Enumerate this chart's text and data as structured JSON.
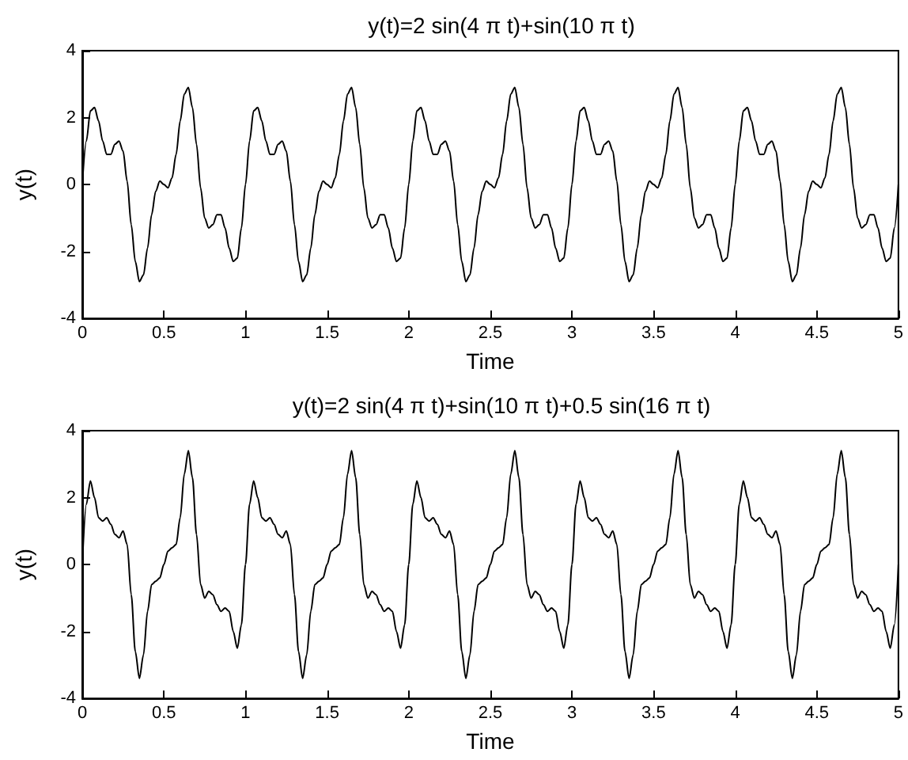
{
  "chart_data": [
    {
      "type": "line",
      "title": "y(t)=2 sin(4 π t)+sin(10 π t)",
      "xlabel": "Time",
      "ylabel": "y(t)",
      "xlim": [
        0,
        5
      ],
      "ylim": [
        -4,
        4
      ],
      "xticks": [
        0,
        0.5,
        1,
        1.5,
        2,
        2.5,
        3,
        3.5,
        4,
        4.5,
        5
      ],
      "yticks": [
        -4,
        -2,
        0,
        2,
        4
      ],
      "marker": "none",
      "line_style": "solid",
      "x": [
        0,
        0.025,
        0.05,
        0.075,
        0.1,
        0.125,
        0.15,
        0.175,
        0.2,
        0.225,
        0.25,
        0.275,
        0.3,
        0.325,
        0.35,
        0.375,
        0.4,
        0.425,
        0.45,
        0.475,
        0.5,
        0.525,
        0.55,
        0.575,
        0.6,
        0.625,
        0.65,
        0.675,
        0.7,
        0.725,
        0.75,
        0.775,
        0.8,
        0.825,
        0.85,
        0.875,
        0.9,
        0.925,
        0.95,
        0.975,
        1,
        1.025,
        1.05,
        1.075,
        1.1,
        1.125,
        1.15,
        1.175,
        1.2,
        1.225,
        1.25,
        1.275,
        1.3,
        1.325,
        1.35,
        1.375,
        1.4,
        1.425,
        1.45,
        1.475,
        1.5,
        1.525,
        1.55,
        1.575,
        1.6,
        1.625,
        1.65,
        1.675,
        1.7,
        1.725,
        1.75,
        1.775,
        1.8,
        1.825,
        1.85,
        1.875,
        1.9,
        1.925,
        1.95,
        1.975,
        2,
        2.025,
        2.05,
        2.075,
        2.1,
        2.125,
        2.15,
        2.175,
        2.2,
        2.225,
        2.25,
        2.275,
        2.3,
        2.325,
        2.35,
        2.375,
        2.4,
        2.425,
        2.45,
        2.475,
        2.5,
        2.525,
        2.55,
        2.575,
        2.6,
        2.625,
        2.65,
        2.675,
        2.7,
        2.725,
        2.75,
        2.775,
        2.8,
        2.825,
        2.85,
        2.875,
        2.9,
        2.925,
        2.95,
        2.975,
        3,
        3.025,
        3.05,
        3.075,
        3.1,
        3.125,
        3.15,
        3.175,
        3.2,
        3.225,
        3.25,
        3.275,
        3.3,
        3.325,
        3.35,
        3.375,
        3.4,
        3.425,
        3.45,
        3.475,
        3.5,
        3.525,
        3.55,
        3.575,
        3.6,
        3.625,
        3.65,
        3.675,
        3.7,
        3.725,
        3.75,
        3.775,
        3.8,
        3.825,
        3.85,
        3.875,
        3.9,
        3.925,
        3.95,
        3.975,
        4,
        4.025,
        4.05,
        4.075,
        4.1,
        4.125,
        4.15,
        4.175,
        4.2,
        4.225,
        4.25,
        4.275,
        4.3,
        4.325,
        4.35,
        4.375,
        4.4,
        4.425,
        4.45,
        4.475,
        4.5,
        4.525,
        4.55,
        4.575,
        4.6,
        4.625,
        4.65,
        4.675,
        4.7,
        4.725,
        4.75,
        4.775,
        4.8,
        4.825,
        4.85,
        4.875,
        4.9,
        4.925,
        4.95,
        4.975,
        5
      ],
      "series": [
        {
          "color": "#000000",
          "values": [
            0,
            1.3,
            2.2,
            2.3,
            1.9,
            1.3,
            0.9,
            0.9,
            1.2,
            1.3,
            1.0,
            0.1,
            -1.2,
            -2.3,
            -2.9,
            -2.7,
            -1.9,
            -0.9,
            -0.2,
            0.1,
            0,
            -0.1,
            0.2,
            0.9,
            1.9,
            2.7,
            2.9,
            2.3,
            1.2,
            -0.1,
            -1.0,
            -1.3,
            -1.2,
            -0.9,
            -0.9,
            -1.3,
            -1.9,
            -2.3,
            -2.2,
            -1.3,
            0,
            1.3,
            2.2,
            2.3,
            1.9,
            1.3,
            0.9,
            0.9,
            1.2,
            1.3,
            1.0,
            0.1,
            -1.2,
            -2.3,
            -2.9,
            -2.7,
            -1.9,
            -0.9,
            -0.2,
            0.1,
            0,
            -0.1,
            0.2,
            0.9,
            1.9,
            2.7,
            2.9,
            2.3,
            1.2,
            -0.1,
            -1.0,
            -1.3,
            -1.2,
            -0.9,
            -0.9,
            -1.3,
            -1.9,
            -2.3,
            -2.2,
            -1.3,
            0,
            1.3,
            2.2,
            2.3,
            1.9,
            1.3,
            0.9,
            0.9,
            1.2,
            1.3,
            1.0,
            0.1,
            -1.2,
            -2.3,
            -2.9,
            -2.7,
            -1.9,
            -0.9,
            -0.2,
            0.1,
            0,
            -0.1,
            0.2,
            0.9,
            1.9,
            2.7,
            2.9,
            2.3,
            1.2,
            -0.1,
            -1.0,
            -1.3,
            -1.2,
            -0.9,
            -0.9,
            -1.3,
            -1.9,
            -2.3,
            -2.2,
            -1.3,
            0,
            1.3,
            2.2,
            2.3,
            1.9,
            1.3,
            0.9,
            0.9,
            1.2,
            1.3,
            1.0,
            0.1,
            -1.2,
            -2.3,
            -2.9,
            -2.7,
            -1.9,
            -0.9,
            -0.2,
            0.1,
            0,
            -0.1,
            0.2,
            0.9,
            1.9,
            2.7,
            2.9,
            2.3,
            1.2,
            -0.1,
            -1.0,
            -1.3,
            -1.2,
            -0.9,
            -0.9,
            -1.3,
            -1.9,
            -2.3,
            -2.2,
            -1.3,
            0,
            1.3,
            2.2,
            2.3,
            1.9,
            1.3,
            0.9,
            0.9,
            1.2,
            1.3,
            1.0,
            0.1,
            -1.2,
            -2.3,
            -2.9,
            -2.7,
            -1.9,
            -0.9,
            -0.2,
            0.1,
            0,
            -0.1,
            0.2,
            0.9,
            1.9,
            2.7,
            2.9,
            2.3,
            1.2,
            -0.1,
            -1.0,
            -1.3,
            -1.2,
            -0.9,
            -0.9,
            -1.3,
            -1.9,
            -2.3,
            -2.2,
            -1.3,
            0
          ]
        }
      ]
    },
    {
      "type": "line",
      "title": "y(t)=2 sin(4 π t)+sin(10 π t)+0.5 sin(16 π t)",
      "xlabel": "Time",
      "ylabel": "y(t)",
      "xlim": [
        0,
        5
      ],
      "ylim": [
        -4,
        4
      ],
      "xticks": [
        0,
        0.5,
        1,
        1.5,
        2,
        2.5,
        3,
        3.5,
        4,
        4.5,
        5
      ],
      "yticks": [
        -4,
        -2,
        0,
        2,
        4
      ],
      "marker": "none",
      "line_style": "solid",
      "x": [
        0,
        0.025,
        0.05,
        0.075,
        0.1,
        0.125,
        0.15,
        0.175,
        0.2,
        0.225,
        0.25,
        0.275,
        0.3,
        0.325,
        0.35,
        0.375,
        0.4,
        0.425,
        0.45,
        0.475,
        0.5,
        0.525,
        0.55,
        0.575,
        0.6,
        0.625,
        0.65,
        0.675,
        0.7,
        0.725,
        0.75,
        0.775,
        0.8,
        0.825,
        0.85,
        0.875,
        0.9,
        0.925,
        0.95,
        0.975,
        1,
        1.025,
        1.05,
        1.075,
        1.1,
        1.125,
        1.15,
        1.175,
        1.2,
        1.225,
        1.25,
        1.275,
        1.3,
        1.325,
        1.35,
        1.375,
        1.4,
        1.425,
        1.45,
        1.475,
        1.5,
        1.525,
        1.55,
        1.575,
        1.6,
        1.625,
        1.65,
        1.675,
        1.7,
        1.725,
        1.75,
        1.775,
        1.8,
        1.825,
        1.85,
        1.875,
        1.9,
        1.925,
        1.95,
        1.975,
        2,
        2.025,
        2.05,
        2.075,
        2.1,
        2.125,
        2.15,
        2.175,
        2.2,
        2.225,
        2.25,
        2.275,
        2.3,
        2.325,
        2.35,
        2.375,
        2.4,
        2.425,
        2.45,
        2.475,
        2.5,
        2.525,
        2.55,
        2.575,
        2.6,
        2.625,
        2.65,
        2.675,
        2.7,
        2.725,
        2.75,
        2.775,
        2.8,
        2.825,
        2.85,
        2.875,
        2.9,
        2.925,
        2.95,
        2.975,
        3,
        3.025,
        3.05,
        3.075,
        3.1,
        3.125,
        3.15,
        3.175,
        3.2,
        3.225,
        3.25,
        3.275,
        3.3,
        3.325,
        3.35,
        3.375,
        3.4,
        3.425,
        3.45,
        3.475,
        3.5,
        3.525,
        3.55,
        3.575,
        3.6,
        3.625,
        3.65,
        3.675,
        3.7,
        3.725,
        3.75,
        3.775,
        3.8,
        3.825,
        3.85,
        3.875,
        3.9,
        3.925,
        3.95,
        3.975,
        4,
        4.025,
        4.05,
        4.075,
        4.1,
        4.125,
        4.15,
        4.175,
        4.2,
        4.225,
        4.25,
        4.275,
        4.3,
        4.325,
        4.35,
        4.375,
        4.4,
        4.425,
        4.45,
        4.475,
        4.5,
        4.525,
        4.55,
        4.575,
        4.6,
        4.625,
        4.65,
        4.675,
        4.7,
        4.725,
        4.75,
        4.775,
        4.8,
        4.825,
        4.85,
        4.875,
        4.9,
        4.925,
        4.95,
        4.975,
        5
      ],
      "series": [
        {
          "color": "#000000",
          "values": [
            0,
            1.8,
            2.5,
            2.0,
            1.4,
            1.3,
            1.4,
            1.2,
            0.9,
            0.8,
            1.0,
            0.6,
            -0.9,
            -2.6,
            -3.4,
            -2.7,
            -1.4,
            -0.6,
            -0.5,
            -0.4,
            0,
            0.4,
            0.5,
            0.6,
            1.4,
            2.7,
            3.4,
            2.6,
            0.9,
            -0.6,
            -1.0,
            -0.8,
            -0.9,
            -1.2,
            -1.4,
            -1.3,
            -1.4,
            -2.0,
            -2.5,
            -1.8,
            0,
            1.8,
            2.5,
            2.0,
            1.4,
            1.3,
            1.4,
            1.2,
            0.9,
            0.8,
            1.0,
            0.6,
            -0.9,
            -2.6,
            -3.4,
            -2.7,
            -1.4,
            -0.6,
            -0.5,
            -0.4,
            0,
            0.4,
            0.5,
            0.6,
            1.4,
            2.7,
            3.4,
            2.6,
            0.9,
            -0.6,
            -1.0,
            -0.8,
            -0.9,
            -1.2,
            -1.4,
            -1.3,
            -1.4,
            -2.0,
            -2.5,
            -1.8,
            0,
            1.8,
            2.5,
            2.0,
            1.4,
            1.3,
            1.4,
            1.2,
            0.9,
            0.8,
            1.0,
            0.6,
            -0.9,
            -2.6,
            -3.4,
            -2.7,
            -1.4,
            -0.6,
            -0.5,
            -0.4,
            0,
            0.4,
            0.5,
            0.6,
            1.4,
            2.7,
            3.4,
            2.6,
            0.9,
            -0.6,
            -1.0,
            -0.8,
            -0.9,
            -1.2,
            -1.4,
            -1.3,
            -1.4,
            -2.0,
            -2.5,
            -1.8,
            0,
            1.8,
            2.5,
            2.0,
            1.4,
            1.3,
            1.4,
            1.2,
            0.9,
            0.8,
            1.0,
            0.6,
            -0.9,
            -2.6,
            -3.4,
            -2.7,
            -1.4,
            -0.6,
            -0.5,
            -0.4,
            0,
            0.4,
            0.5,
            0.6,
            1.4,
            2.7,
            3.4,
            2.6,
            0.9,
            -0.6,
            -1.0,
            -0.8,
            -0.9,
            -1.2,
            -1.4,
            -1.3,
            -1.4,
            -2.0,
            -2.5,
            -1.8,
            0,
            1.8,
            2.5,
            2.0,
            1.4,
            1.3,
            1.4,
            1.2,
            0.9,
            0.8,
            1.0,
            0.6,
            -0.9,
            -2.6,
            -3.4,
            -2.7,
            -1.4,
            -0.6,
            -0.5,
            -0.4,
            0,
            0.4,
            0.5,
            0.6,
            1.4,
            2.7,
            3.4,
            2.6,
            0.9,
            -0.6,
            -1.0,
            -0.8,
            -0.9,
            -1.2,
            -1.4,
            -1.3,
            -1.4,
            -2.0,
            -2.5,
            -1.8,
            0
          ]
        }
      ]
    }
  ]
}
